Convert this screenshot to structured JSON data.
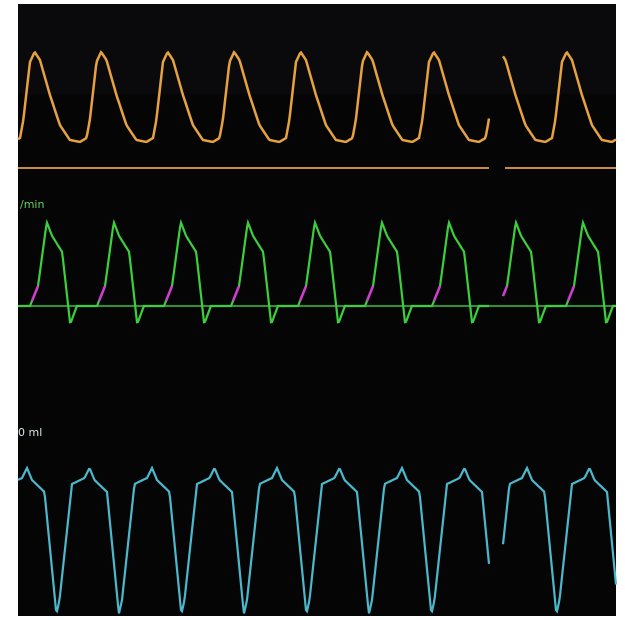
{
  "labels": {
    "flow_unit": "/min",
    "volume_unit": "0 ml"
  }
}
